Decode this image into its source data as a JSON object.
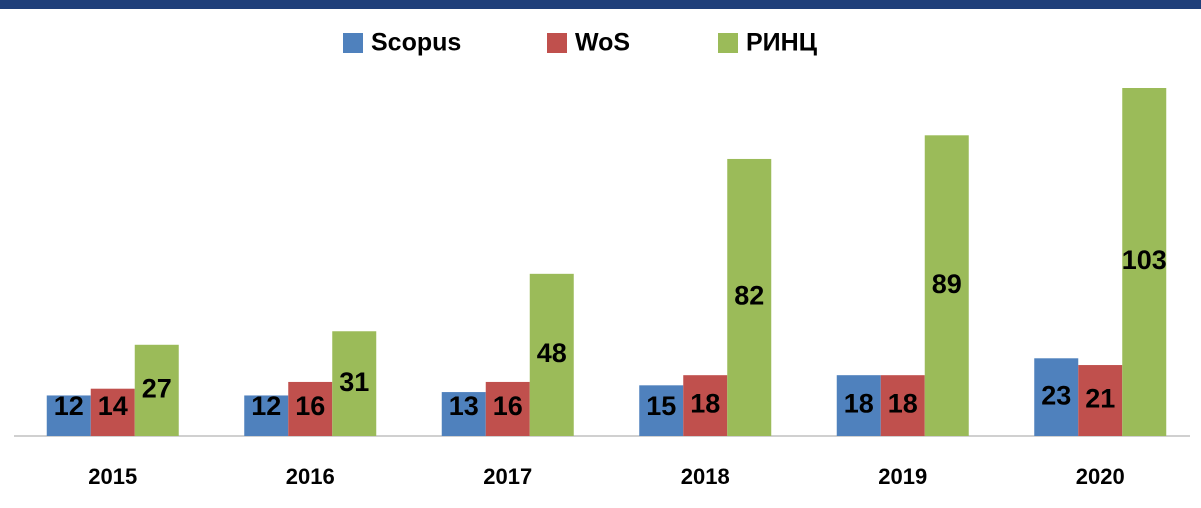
{
  "chart_data": {
    "type": "bar",
    "categories": [
      "2015",
      "2016",
      "2017",
      "2018",
      "2019",
      "2020"
    ],
    "series": [
      {
        "name": "Scopus",
        "color": "#4f81bd",
        "values": [
          12,
          12,
          13,
          15,
          18,
          23
        ]
      },
      {
        "name": "WoS",
        "color": "#c0504d",
        "values": [
          14,
          16,
          16,
          18,
          18,
          21
        ]
      },
      {
        "name": "РИНЦ",
        "color": "#9bbb59",
        "values": [
          27,
          31,
          48,
          82,
          89,
          103
        ]
      }
    ],
    "legend": "top"
  }
}
